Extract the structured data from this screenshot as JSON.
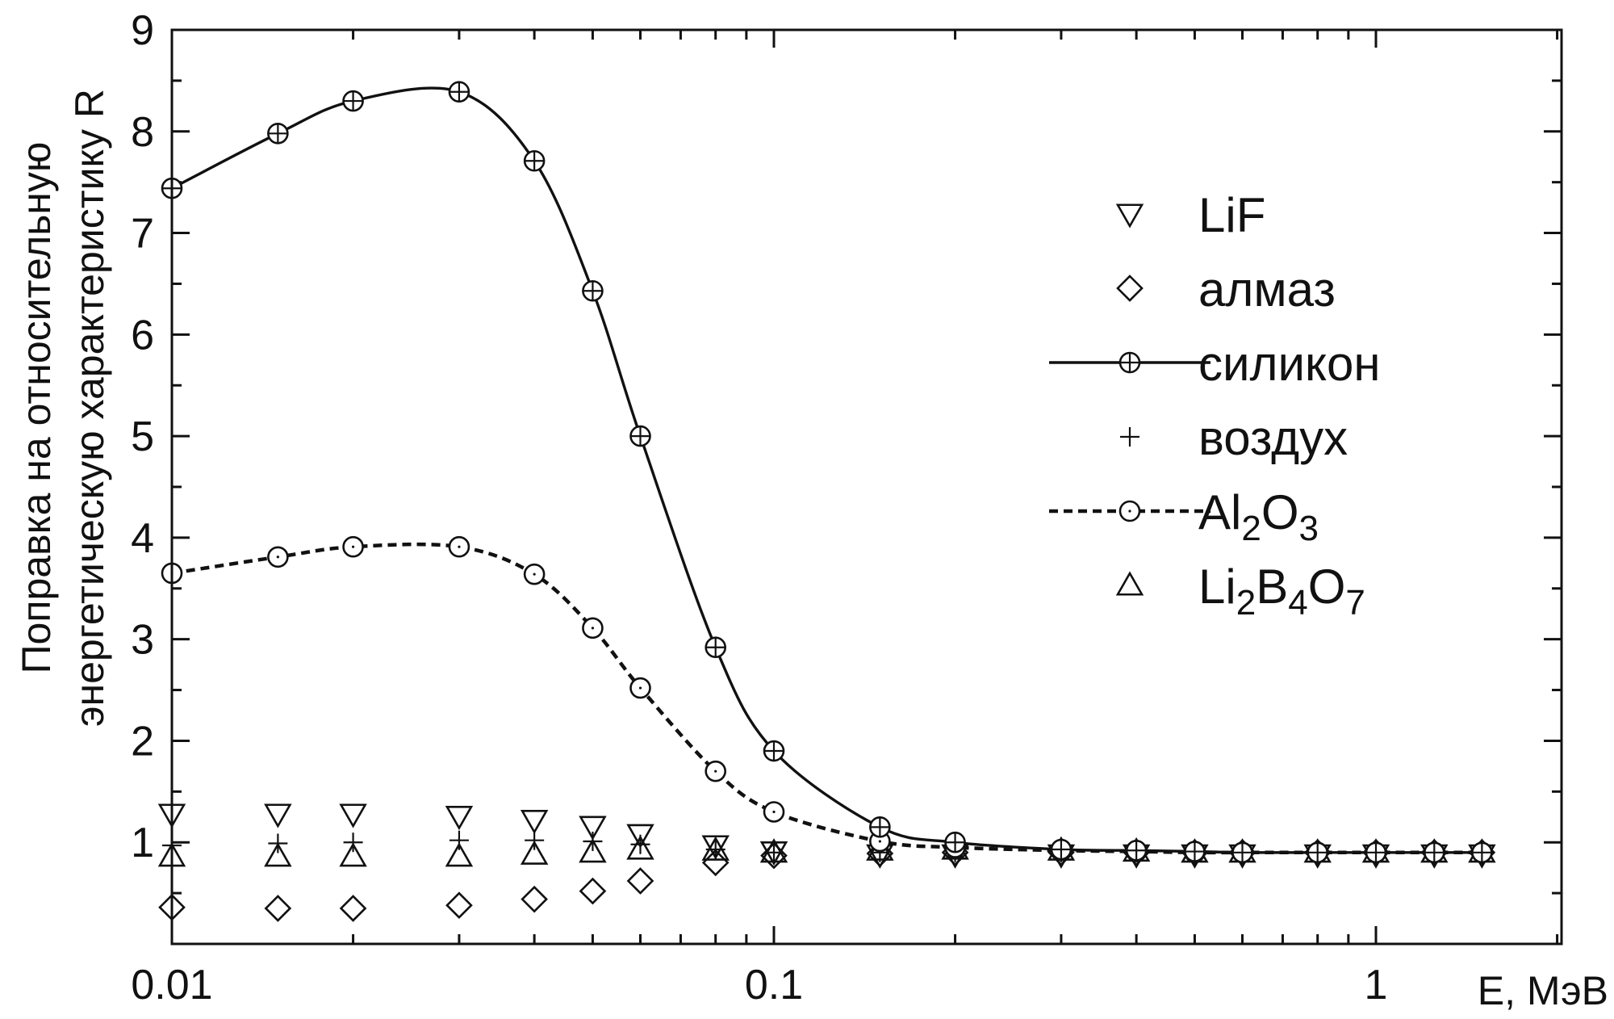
{
  "chart_data": {
    "type": "scatter",
    "title": "",
    "xlabel": "E, МэВ",
    "ylabel_line1": "Поправка на относительную",
    "ylabel_line2": "энергетическую характеристику R",
    "x_scale": "log",
    "xlim": [
      0.01,
      3.0
    ],
    "ylim": [
      0,
      9
    ],
    "grid": false,
    "legend_position": "right",
    "x_tick_labels": [
      {
        "value": 0.01,
        "label": "0.01"
      },
      {
        "value": 0.1,
        "label": "0.1"
      },
      {
        "value": 1,
        "label": "1"
      }
    ],
    "y_ticks": [
      1,
      2,
      3,
      4,
      5,
      6,
      7,
      8,
      9
    ],
    "series": [
      {
        "name": "LiF",
        "name_parts": [
          {
            "t": "LiF"
          }
        ],
        "marker": "triangle-down",
        "line": "none",
        "x": [
          0.01,
          0.015,
          0.02,
          0.03,
          0.04,
          0.05,
          0.06,
          0.08,
          0.1,
          0.15,
          0.2,
          0.3,
          0.4,
          0.5,
          0.6,
          0.8,
          1.0,
          1.25,
          1.5
        ],
        "y": [
          1.28,
          1.28,
          1.28,
          1.26,
          1.22,
          1.16,
          1.08,
          0.97,
          0.91,
          0.88,
          0.88,
          0.88,
          0.88,
          0.88,
          0.88,
          0.88,
          0.88,
          0.88,
          0.88
        ]
      },
      {
        "name": "алмаз",
        "name_parts": [
          {
            "t": "алмаз"
          }
        ],
        "marker": "diamond",
        "line": "none",
        "x": [
          0.01,
          0.015,
          0.02,
          0.03,
          0.04,
          0.05,
          0.06,
          0.08,
          0.1,
          0.15,
          0.2,
          0.3,
          0.4,
          0.5,
          0.6,
          0.8,
          1.0,
          1.25,
          1.5
        ],
        "y": [
          0.36,
          0.35,
          0.35,
          0.38,
          0.44,
          0.52,
          0.62,
          0.8,
          0.87,
          0.89,
          0.9,
          0.9,
          0.9,
          0.9,
          0.9,
          0.9,
          0.9,
          0.9,
          0.9
        ]
      },
      {
        "name": "силикон",
        "name_parts": [
          {
            "t": "силикон"
          }
        ],
        "marker": "circle-plus",
        "line": "solid",
        "x": [
          0.01,
          0.015,
          0.02,
          0.03,
          0.04,
          0.05,
          0.06,
          0.08,
          0.1,
          0.15,
          0.2,
          0.3,
          0.4,
          0.5,
          0.6,
          0.8,
          1.0,
          1.25,
          1.5
        ],
        "y": [
          7.44,
          7.98,
          8.3,
          8.39,
          7.71,
          6.43,
          5.0,
          2.92,
          1.9,
          1.15,
          1.0,
          0.93,
          0.92,
          0.91,
          0.9,
          0.9,
          0.9,
          0.9,
          0.9
        ]
      },
      {
        "name": "воздух",
        "name_parts": [
          {
            "t": "воздух"
          }
        ],
        "marker": "plus",
        "line": "none",
        "x": [
          0.01,
          0.015,
          0.02,
          0.03,
          0.04,
          0.05,
          0.06,
          0.08,
          0.1,
          0.15,
          0.2,
          0.3,
          0.4,
          0.5,
          0.6,
          0.8,
          1.0,
          1.25,
          1.5
        ],
        "y": [
          0.97,
          0.99,
          1.0,
          1.02,
          1.02,
          1.01,
          0.98,
          0.93,
          0.9,
          0.9,
          0.9,
          0.9,
          0.9,
          0.9,
          0.9,
          0.9,
          0.9,
          0.9,
          0.9
        ]
      },
      {
        "name": "Al2O3",
        "name_parts": [
          {
            "t": "Al"
          },
          {
            "t": "2",
            "sub": true
          },
          {
            "t": "O"
          },
          {
            "t": "3",
            "sub": true
          }
        ],
        "marker": "circle-dot",
        "line": "dashed",
        "x": [
          0.01,
          0.015,
          0.02,
          0.03,
          0.04,
          0.05,
          0.06,
          0.08,
          0.1,
          0.15,
          0.2,
          0.3,
          0.4,
          0.5,
          0.6,
          0.8,
          1.0,
          1.25,
          1.5
        ],
        "y": [
          3.65,
          3.81,
          3.91,
          3.91,
          3.64,
          3.11,
          2.52,
          1.7,
          1.3,
          1.01,
          0.95,
          0.92,
          0.91,
          0.9,
          0.9,
          0.9,
          0.9,
          0.9,
          0.9
        ]
      },
      {
        "name": "Li2B4O7",
        "name_parts": [
          {
            "t": "Li"
          },
          {
            "t": "2",
            "sub": true
          },
          {
            "t": "B"
          },
          {
            "t": "4",
            "sub": true
          },
          {
            "t": "O"
          },
          {
            "t": "7",
            "sub": true
          }
        ],
        "marker": "triangle-up",
        "line": "none",
        "x": [
          0.01,
          0.015,
          0.02,
          0.03,
          0.04,
          0.05,
          0.06,
          0.08,
          0.1,
          0.15,
          0.2,
          0.3,
          0.4,
          0.5,
          0.6,
          0.8,
          1.0,
          1.25,
          1.5
        ],
        "y": [
          0.86,
          0.86,
          0.86,
          0.86,
          0.88,
          0.9,
          0.93,
          0.92,
          0.9,
          0.92,
          0.93,
          0.92,
          0.91,
          0.9,
          0.9,
          0.9,
          0.9,
          0.9,
          0.9
        ]
      }
    ]
  }
}
